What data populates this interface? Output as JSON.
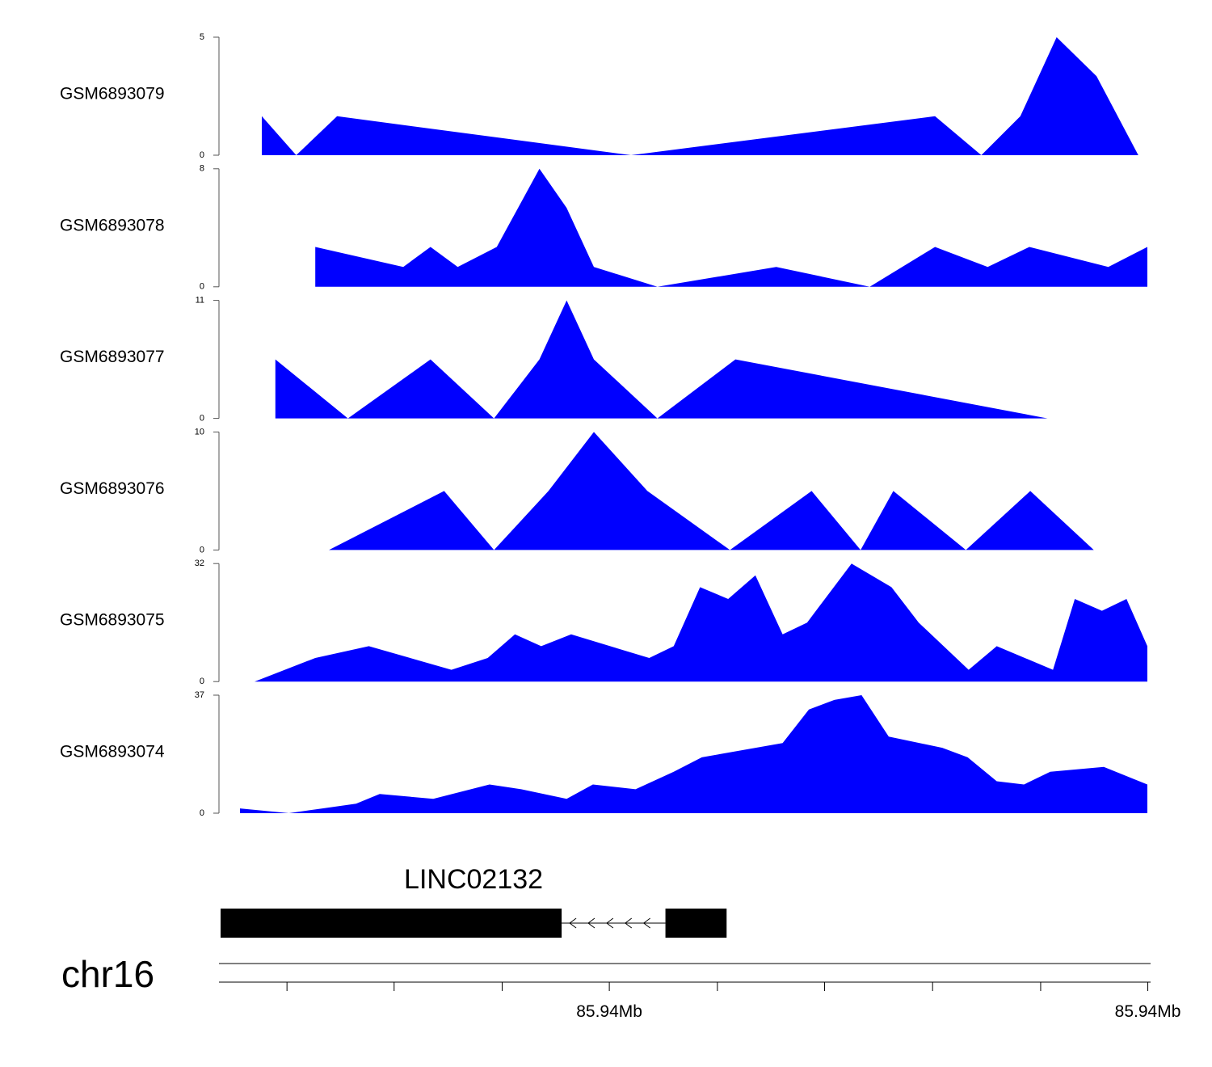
{
  "chart_data": {
    "type": "area",
    "fill_color": "#0000ff",
    "x_domain": [
      0,
      1
    ],
    "tracks": [
      {
        "name": "GSM6893079",
        "ylim": [
          0,
          5
        ],
        "ytick_labels": [
          "0",
          "5"
        ],
        "points": [
          [
            0.024,
            1.65
          ],
          [
            0.062,
            0
          ],
          [
            0.107,
            1.65
          ],
          [
            0.431,
            0
          ],
          [
            0.766,
            1.65
          ],
          [
            0.817,
            0
          ],
          [
            0.86,
            1.65
          ],
          [
            0.9,
            5
          ],
          [
            0.944,
            3.35
          ],
          [
            0.99,
            0
          ]
        ]
      },
      {
        "name": "GSM6893078",
        "ylim": [
          0,
          8
        ],
        "ytick_labels": [
          "0",
          "8"
        ],
        "points": [
          [
            0.083,
            2.7
          ],
          [
            0.18,
            1.35
          ],
          [
            0.21,
            2.7
          ],
          [
            0.24,
            1.35
          ],
          [
            0.283,
            2.7
          ],
          [
            0.33,
            8
          ],
          [
            0.36,
            5.35
          ],
          [
            0.39,
            1.35
          ],
          [
            0.46,
            0
          ],
          [
            0.591,
            1.35
          ],
          [
            0.694,
            0
          ],
          [
            0.766,
            2.7
          ],
          [
            0.824,
            1.35
          ],
          [
            0.87,
            2.7
          ],
          [
            0.957,
            1.35
          ],
          [
            1.0,
            2.7
          ]
        ]
      },
      {
        "name": "GSM6893077",
        "ylim": [
          0,
          11
        ],
        "ytick_labels": [
          "0",
          "11"
        ],
        "points": [
          [
            0.039,
            5.5
          ],
          [
            0.119,
            0
          ],
          [
            0.21,
            5.5
          ],
          [
            0.28,
            0
          ],
          [
            0.33,
            5.5
          ],
          [
            0.36,
            11
          ],
          [
            0.39,
            5.5
          ],
          [
            0.46,
            0
          ],
          [
            0.546,
            5.5
          ],
          [
            0.89,
            0
          ]
        ]
      },
      {
        "name": "GSM6893076",
        "ylim": [
          0,
          10
        ],
        "ytick_labels": [
          "0",
          "10"
        ],
        "points": [
          [
            0.098,
            0
          ],
          [
            0.225,
            5
          ],
          [
            0.28,
            0
          ],
          [
            0.34,
            5
          ],
          [
            0.39,
            10
          ],
          [
            0.449,
            5
          ],
          [
            0.54,
            0
          ],
          [
            0.63,
            5
          ],
          [
            0.684,
            0
          ],
          [
            0.72,
            5
          ],
          [
            0.8,
            0
          ],
          [
            0.871,
            5
          ],
          [
            0.941,
            0
          ]
        ]
      },
      {
        "name": "GSM6893075",
        "ylim": [
          0,
          32
        ],
        "ytick_labels": [
          "0",
          "32"
        ],
        "points": [
          [
            0.016,
            0
          ],
          [
            0.083,
            6.4
          ],
          [
            0.142,
            9.6
          ],
          [
            0.233,
            3.2
          ],
          [
            0.273,
            6.4
          ],
          [
            0.303,
            12.8
          ],
          [
            0.332,
            9.6
          ],
          [
            0.365,
            12.8
          ],
          [
            0.451,
            6.4
          ],
          [
            0.478,
            9.6
          ],
          [
            0.507,
            25.6
          ],
          [
            0.538,
            22.4
          ],
          [
            0.568,
            28.8
          ],
          [
            0.598,
            12.8
          ],
          [
            0.625,
            16
          ],
          [
            0.674,
            32
          ],
          [
            0.718,
            25.6
          ],
          [
            0.748,
            16
          ],
          [
            0.803,
            3.2
          ],
          [
            0.834,
            9.6
          ],
          [
            0.896,
            3.2
          ],
          [
            0.92,
            22.4
          ],
          [
            0.95,
            19.2
          ],
          [
            0.977,
            22.4
          ],
          [
            1.0,
            9.6
          ]
        ]
      },
      {
        "name": "GSM6893074",
        "ylim": [
          0,
          37
        ],
        "ytick_labels": [
          "0",
          "37"
        ],
        "points": [
          [
            0.0,
            1.5
          ],
          [
            0.054,
            0
          ],
          [
            0.091,
            1.5
          ],
          [
            0.128,
            3
          ],
          [
            0.154,
            6
          ],
          [
            0.213,
            4.5
          ],
          [
            0.275,
            9
          ],
          [
            0.31,
            7.5
          ],
          [
            0.36,
            4.5
          ],
          [
            0.389,
            9
          ],
          [
            0.436,
            7.5
          ],
          [
            0.478,
            13
          ],
          [
            0.509,
            17.5
          ],
          [
            0.598,
            22
          ],
          [
            0.627,
            32.5
          ],
          [
            0.655,
            35.5
          ],
          [
            0.685,
            37
          ],
          [
            0.715,
            24
          ],
          [
            0.774,
            20.5
          ],
          [
            0.802,
            17.5
          ],
          [
            0.834,
            10
          ],
          [
            0.864,
            9
          ],
          [
            0.893,
            13
          ],
          [
            0.952,
            14.5
          ],
          [
            1.0,
            9
          ]
        ]
      }
    ],
    "gene": {
      "name": "LINC02132",
      "strand": "-",
      "exons": [
        [
          0.0,
          0.368
        ],
        [
          0.48,
          0.546
        ]
      ],
      "intron_arrow_count": 5
    },
    "axis": {
      "chromosome": "chr16",
      "tick_positions": [
        0.073,
        0.188,
        0.304,
        0.419,
        0.535,
        0.65,
        0.766,
        0.882,
        0.997
      ],
      "tick_labels": [
        {
          "pos": 0.419,
          "label": "85.94Mb"
        },
        {
          "pos": 0.997,
          "label": "85.94Mb"
        }
      ]
    }
  }
}
